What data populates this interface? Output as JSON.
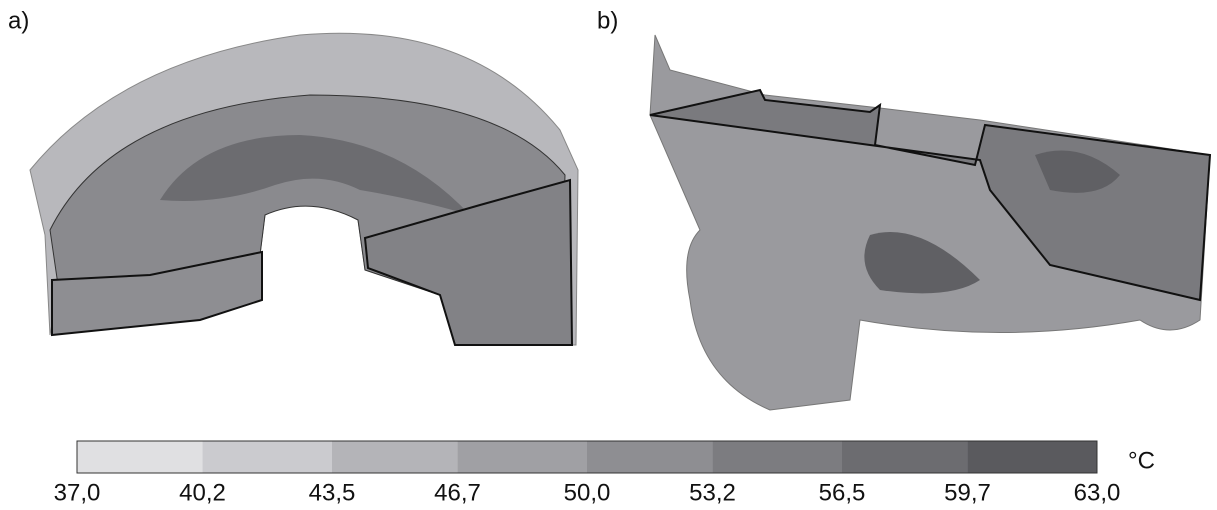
{
  "panels": [
    {
      "label": "a)"
    },
    {
      "label": "b)"
    }
  ],
  "colorbar": {
    "unit": "°C",
    "lim": [
      37.0,
      63.0
    ],
    "ticks": [
      {
        "value": 37.0,
        "label": "37,0"
      },
      {
        "value": 40.2,
        "label": "40,2"
      },
      {
        "value": 43.5,
        "label": "43,5"
      },
      {
        "value": 46.7,
        "label": "46,7"
      },
      {
        "value": 50.0,
        "label": "50,0"
      },
      {
        "value": 53.2,
        "label": "53,2"
      },
      {
        "value": 56.5,
        "label": "56,5"
      },
      {
        "value": 59.7,
        "label": "59,7"
      },
      {
        "value": 63.0,
        "label": "63,0"
      }
    ],
    "colors": [
      "#e0e0e2",
      "#cbcbcf",
      "#b4b4b8",
      "#a0a0a4",
      "#8e8e92",
      "#7c7c80",
      "#6c6c70",
      "#5a5a5e"
    ]
  }
}
